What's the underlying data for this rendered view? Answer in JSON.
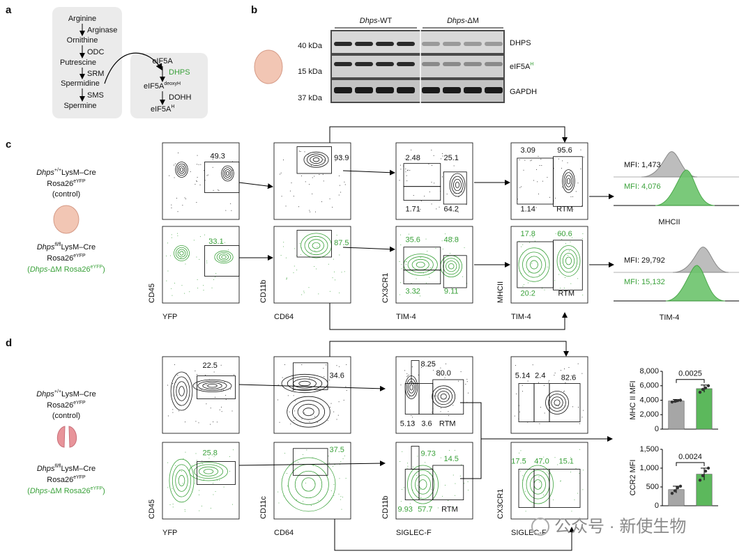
{
  "a": {
    "label": "a",
    "pathway": [
      "Arginine",
      "Ornithine",
      "Putrescine",
      "Spermidine",
      "Spermine"
    ],
    "enzymes": [
      "Arginase",
      "ODC",
      "SRM",
      "SMS"
    ],
    "hypusination": {
      "substrate": "eIF5A",
      "enzyme1": "DHPS",
      "intermediate": "eIF5A",
      "intermediate_sup": "deoxyH",
      "enzyme2": "DOHH",
      "product": "eIF5A",
      "product_sup": "H"
    }
  },
  "b": {
    "label": "b",
    "groups": [
      {
        "gene": "Dhps",
        "suffix": "-WT"
      },
      {
        "gene": "Dhps",
        "suffix": "-ΔM"
      }
    ],
    "markers": [
      "40 kDa",
      "15 kDa",
      "37 kDa"
    ],
    "proteins": [
      {
        "name": "DHPS"
      },
      {
        "name": "eIF5A",
        "sup": "H"
      },
      {
        "name": "GAPDH"
      }
    ]
  },
  "c": {
    "label": "c",
    "control": {
      "gene": "Dhps",
      "gene_sup": "+/+",
      "cre": "LysM–Cre",
      "reporter": "Rosa26",
      "reporter_sup": "eYFP",
      "note": "(control)"
    },
    "mutant": {
      "gene": "Dhps",
      "gene_sup": "fl/fl",
      "cre": "LysM–Cre",
      "reporter": "Rosa26",
      "reporter_sup": "eYFP",
      "note_open": "(",
      "note_gene": "Dhps",
      "note_rest": "-ΔM Rosa26",
      "note_sup": "eYFP",
      "note_close": ")"
    },
    "plots": [
      {
        "y_label": "CD45",
        "x_label": "YFP",
        "control_gates": [
          "49.3"
        ],
        "mutant_gates": [
          "33.1"
        ]
      },
      {
        "y_label": "CD11b",
        "x_label": "CD64",
        "control_gates": [
          "93.9"
        ],
        "mutant_gates": [
          "87.5"
        ]
      },
      {
        "y_label": "CX3CR1",
        "x_label": "TIM-4",
        "control_gates": [
          "2.48",
          "25.1",
          "1.71",
          "64.2"
        ],
        "mutant_gates": [
          "35.6",
          "48.8",
          "3.32",
          "9.11"
        ]
      },
      {
        "y_label": "MHCII",
        "x_label": "TIM-4",
        "control_gates": [
          "3.09",
          "95.6",
          "1.14",
          "RTM"
        ],
        "mutant_gates": [
          "17.8",
          "60.6",
          "20.2",
          "RTM"
        ]
      }
    ],
    "histograms": [
      {
        "x_label": "MHCII",
        "control": "MFI: 1,473",
        "mutant": "MFI: 4,076"
      },
      {
        "x_label": "TIM-4",
        "control": "MFI: 29,792",
        "mutant": "MFI: 15,132"
      }
    ]
  },
  "d": {
    "label": "d",
    "control": {
      "gene": "Dhps",
      "gene_sup": "+/+",
      "cre": "LysM–Cre",
      "reporter": "Rosa26",
      "reporter_sup": "eYFP",
      "note": "(control)"
    },
    "mutant": {
      "gene": "Dhps",
      "gene_sup": "fl/fl",
      "cre": "LysM–Cre",
      "reporter": "Rosa26",
      "reporter_sup": "eYFP",
      "note_open": "(",
      "note_gene": "Dhps",
      "note_rest": "-ΔM Rosa26",
      "note_sup": "eYFP",
      "note_close": ")"
    },
    "plots": [
      {
        "y_label": "CD45",
        "x_label": "YFP",
        "control_gates": [
          "22.5"
        ],
        "mutant_gates": [
          "25.8"
        ]
      },
      {
        "y_label": "CD11c",
        "x_label": "CD64",
        "control_gates": [
          "34.6"
        ],
        "mutant_gates": [
          "37.5"
        ]
      },
      {
        "y_label": "CD11b",
        "x_label": "SIGLEC-F",
        "control_gates": [
          "8.25",
          "80.0",
          "5.13",
          "3.6",
          "RTM"
        ],
        "mutant_gates": [
          "9.73",
          "14.5",
          "9.93",
          "57.7",
          "RTM"
        ]
      },
      {
        "y_label": "CX3CR1",
        "x_label": "SIGLEC-F",
        "control_gates": [
          "5.14",
          "2.4",
          "82.6"
        ],
        "mutant_gates": [
          "17.5",
          "47.0",
          "15.1"
        ]
      }
    ]
  },
  "chart_data": [
    {
      "type": "bar",
      "y_label": "MHC II MFI",
      "categories": [
        null,
        null
      ],
      "values": [
        3900,
        5600
      ],
      "errors": [
        200,
        500
      ],
      "colors": [
        "#a6a6a6",
        "#5cb85c"
      ],
      "points": [
        [
          3750,
          3850,
          3950,
          4000
        ],
        [
          5100,
          5500,
          5700,
          6000
        ]
      ],
      "ylim": [
        0,
        8000
      ],
      "yticks": [
        0,
        {
          "value": 2000,
          "label": "2,000"
        },
        {
          "value": 4000,
          "label": "4,000"
        },
        {
          "value": 6000,
          "label": "6,000"
        },
        {
          "value": 8000,
          "label": "8,000"
        }
      ],
      "annotation": "0.0025"
    },
    {
      "type": "bar",
      "y_label": "CCR2 MFI",
      "categories": [
        null,
        null
      ],
      "values": [
        430,
        840
      ],
      "errors": [
        90,
        160
      ],
      "colors": [
        "#a6a6a6",
        "#5cb85c"
      ],
      "points": [
        [
          330,
          400,
          480,
          520
        ],
        [
          680,
          800,
          920,
          1000
        ]
      ],
      "ylim": [
        0,
        1500
      ],
      "yticks": [
        0,
        500,
        {
          "value": 1000,
          "label": "1,000"
        },
        {
          "value": 1500,
          "label": "1,500"
        }
      ],
      "annotation": "0.0024"
    }
  ],
  "watermark": "公众号 · 新使生物"
}
